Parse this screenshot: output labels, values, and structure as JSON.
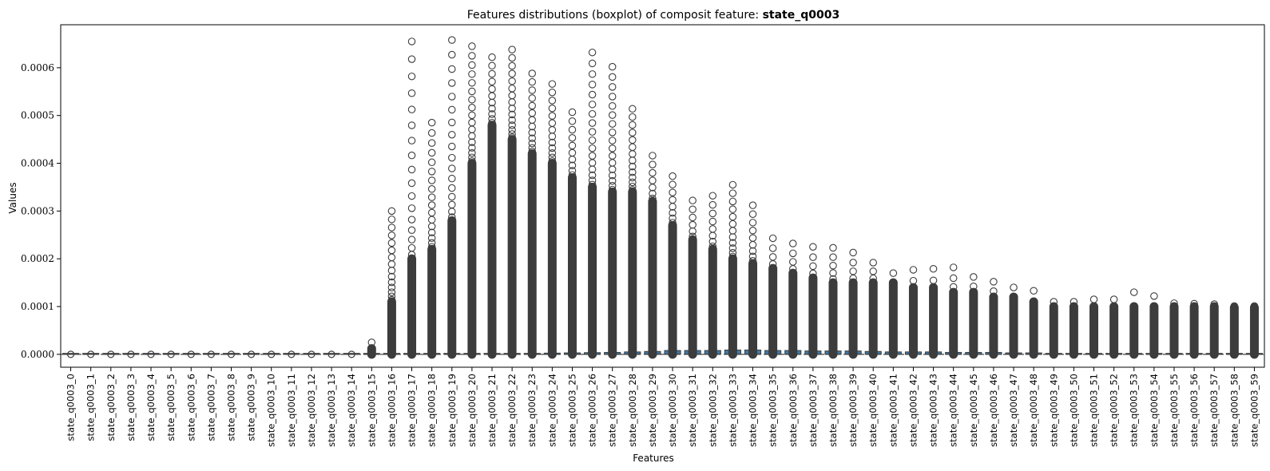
{
  "chart_data": {
    "type": "boxplot",
    "title_prefix": "Features distributions (boxplot) of composit feature: ",
    "title_feature": "state_q0003",
    "xlabel": "Features",
    "ylabel": "Values",
    "ylim": [
      -2.7e-05,
      0.00069
    ],
    "yticks": [
      0.0,
      0.0001,
      0.0002,
      0.0003,
      0.0004,
      0.0005,
      0.0006
    ],
    "ytick_labels": [
      "0.0000",
      "0.0001",
      "0.0002",
      "0.0003",
      "0.0004",
      "0.0005",
      "0.0006"
    ],
    "reference_line": 0.0,
    "colors": {
      "box": "#3f7aa8",
      "line": "#3c3c3c"
    },
    "categories": [
      "state_q0003_0",
      "state_q0003_1",
      "state_q0003_2",
      "state_q0003_3",
      "state_q0003_4",
      "state_q0003_5",
      "state_q0003_6",
      "state_q0003_7",
      "state_q0003_8",
      "state_q0003_9",
      "state_q0003_10",
      "state_q0003_11",
      "state_q0003_12",
      "state_q0003_13",
      "state_q0003_14",
      "state_q0003_15",
      "state_q0003_16",
      "state_q0003_17",
      "state_q0003_18",
      "state_q0003_19",
      "state_q0003_20",
      "state_q0003_21",
      "state_q0003_22",
      "state_q0003_23",
      "state_q0003_24",
      "state_q0003_25",
      "state_q0003_26",
      "state_q0003_27",
      "state_q0003_28",
      "state_q0003_29",
      "state_q0003_30",
      "state_q0003_31",
      "state_q0003_32",
      "state_q0003_33",
      "state_q0003_34",
      "state_q0003_35",
      "state_q0003_36",
      "state_q0003_37",
      "state_q0003_38",
      "state_q0003_39",
      "state_q0003_40",
      "state_q0003_41",
      "state_q0003_42",
      "state_q0003_43",
      "state_q0003_44",
      "state_q0003_45",
      "state_q0003_46",
      "state_q0003_47",
      "state_q0003_48",
      "state_q0003_49",
      "state_q0003_50",
      "state_q0003_51",
      "state_q0003_52",
      "state_q0003_53",
      "state_q0003_54",
      "state_q0003_55",
      "state_q0003_56",
      "state_q0003_57",
      "state_q0003_58",
      "state_q0003_59"
    ],
    "q3": [
      0,
      0,
      0,
      0,
      0,
      0,
      0,
      0,
      0,
      0,
      0,
      0,
      0,
      0,
      0,
      0,
      0,
      0,
      0,
      0,
      5e-07,
      1e-06,
      1.5e-06,
      2e-06,
      2.5e-06,
      3e-06,
      3.5e-06,
      4e-06,
      5e-06,
      6e-06,
      8e-06,
      8e-06,
      8e-06,
      9e-06,
      9e-06,
      8e-06,
      8e-06,
      7e-06,
      7e-06,
      7e-06,
      6e-06,
      5e-06,
      5e-06,
      5e-06,
      4e-06,
      4e-06,
      4e-06,
      3e-06,
      3e-06,
      2e-06,
      2e-06,
      2e-06,
      1e-06,
      1e-06,
      1e-06,
      1e-06,
      1e-06,
      1e-06,
      1e-06,
      1e-06
    ],
    "outlier_max": [
      0,
      0,
      0,
      0,
      0,
      0,
      0,
      0,
      0,
      0,
      0,
      0,
      0,
      0,
      0,
      2.5e-05,
      0.0003,
      0.000655,
      0.000485,
      0.000658,
      0.000645,
      0.000622,
      0.000638,
      0.000588,
      0.000566,
      0.000507,
      0.000632,
      0.000602,
      0.000514,
      0.000416,
      0.000373,
      0.000322,
      0.000332,
      0.000355,
      0.000312,
      0.000243,
      0.000232,
      0.000225,
      0.000223,
      0.000213,
      0.000192,
      0.00017,
      0.000177,
      0.000179,
      0.000182,
      0.000162,
      0.000152,
      0.00014,
      0.000133,
      0.00011,
      0.00011,
      0.000115,
      0.000115,
      0.00013,
      0.000122,
      0.000107,
      0.000106,
      0.000105,
      0.000101,
      0.000101
    ],
    "dense_top": [
      0,
      0,
      0,
      0,
      0,
      0,
      0,
      0,
      0,
      0,
      0,
      0,
      0,
      0,
      0,
      1.2e-05,
      0.00011,
      0.0002,
      0.00022,
      0.00028,
      0.0004,
      0.00048,
      0.00045,
      0.00042,
      0.0004,
      0.00037,
      0.00035,
      0.00034,
      0.00034,
      0.00032,
      0.00027,
      0.00024,
      0.00022,
      0.0002,
      0.00019,
      0.00018,
      0.00017,
      0.00016,
      0.00015,
      0.00015,
      0.00015,
      0.00015,
      0.00014,
      0.00014,
      0.00013,
      0.00013,
      0.00012,
      0.00012,
      0.00011,
      0.0001,
      0.0001,
      0.0001,
      0.0001,
      0.0001,
      0.0001,
      0.0001,
      0.0001,
      0.0001,
      9.8e-05,
      9.8e-05
    ]
  }
}
